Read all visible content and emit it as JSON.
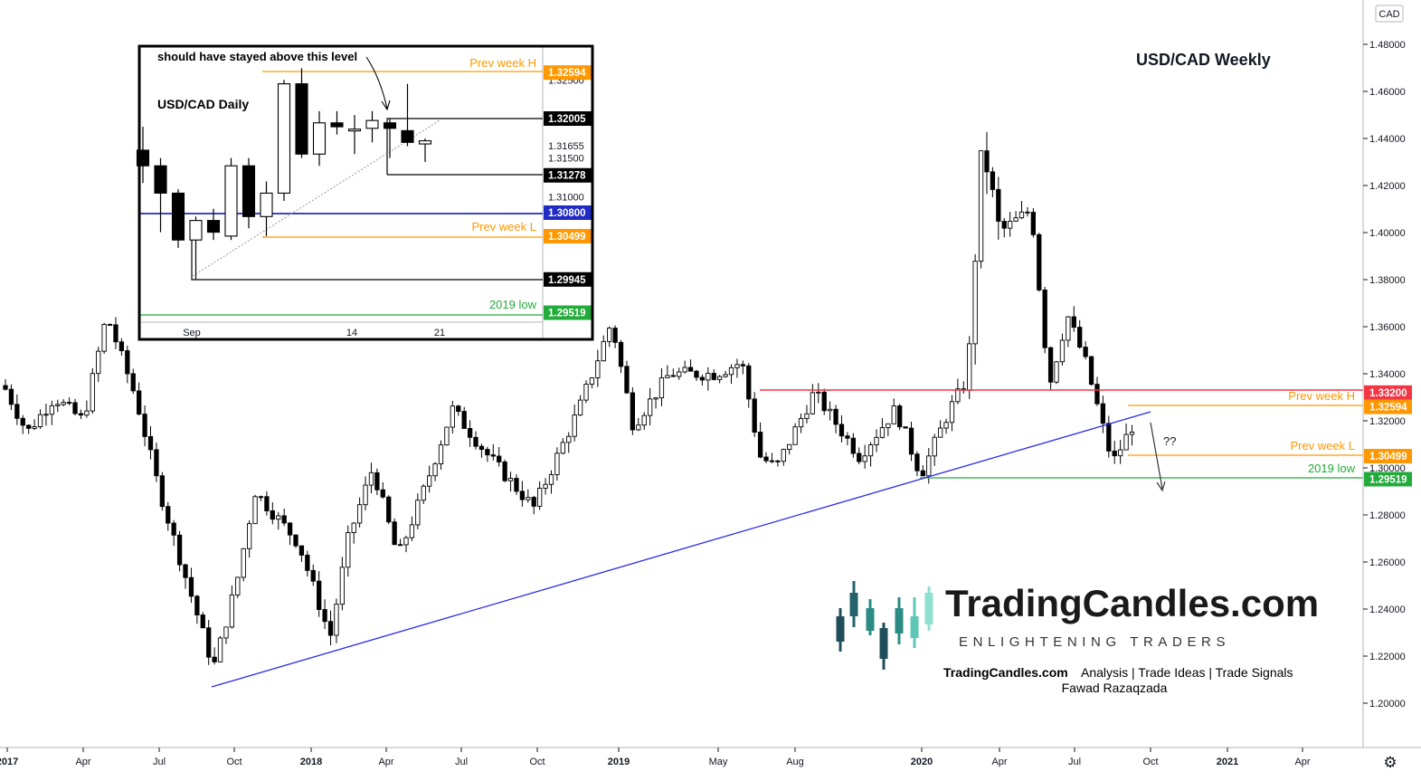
{
  "chart_data": [
    {
      "type": "candlestick",
      "title": "USD/CAD Weekly",
      "y_axis": {
        "unit_badge": "CAD",
        "ticks": [
          "1.48000",
          "1.46000",
          "1.44000",
          "1.42000",
          "1.40000",
          "1.38000",
          "1.36000",
          "1.34000",
          "1.32000",
          "1.30000",
          "1.28000",
          "1.26000",
          "1.24000",
          "1.22000",
          "1.20000"
        ],
        "ylim": [
          1.19,
          1.485
        ]
      },
      "x_axis": {
        "ticks": [
          "2017",
          "Apr",
          "Jul",
          "Oct",
          "2018",
          "Apr",
          "Jul",
          "Oct",
          "2019",
          "May",
          "Aug",
          "2020",
          "Apr",
          "Jul",
          "Oct",
          "2021",
          "Apr"
        ]
      },
      "price_tags": [
        {
          "value": "1.33200",
          "color": "#f23645",
          "price": 1.332
        },
        {
          "value": "1.32594",
          "color": "#ff9800",
          "price": 1.32594
        },
        {
          "value": "1.30499",
          "color": "#ff9800",
          "price": 1.30499
        },
        {
          "value": "1.29519",
          "color": "#22ab3a",
          "price": 1.29519
        }
      ],
      "annotations": {
        "prev_week_h": "Prev week H",
        "prev_week_l": "Prev week L",
        "low_2019": "2019 low",
        "question": "??"
      }
    },
    {
      "type": "candlestick",
      "title": "USD/CAD Daily",
      "annotation": "should have stayed above this level",
      "y_axis": {
        "ticks": [
          "1.32500",
          "1.31655",
          "1.31500",
          "1.31000"
        ]
      },
      "x_axis": {
        "ticks": [
          "Sep",
          "14",
          "21"
        ]
      },
      "price_tags": [
        {
          "value": "1.32594",
          "color": "#ff9800",
          "price": 1.32594
        },
        {
          "value": "1.32005",
          "color": "#000000",
          "price": 1.32005
        },
        {
          "value": "1.31278",
          "color": "#000000",
          "price": 1.31278
        },
        {
          "value": "1.30800",
          "color": "#1f2bc4",
          "price": 1.308
        },
        {
          "value": "1.30499",
          "color": "#ff9800",
          "price": 1.30499
        },
        {
          "value": "1.29945",
          "color": "#000000",
          "price": 1.29945
        },
        {
          "value": "1.29519",
          "color": "#22ab3a",
          "price": 1.29519
        }
      ],
      "labels": {
        "prev_week_h": "Prev week H",
        "prev_week_l": "Prev week L",
        "low_2019": "2019 low"
      },
      "candles": [
        {
          "o": 1.316,
          "h": 1.319,
          "l": 1.3118,
          "c": 1.314
        },
        {
          "o": 1.314,
          "h": 1.315,
          "l": 1.3055,
          "c": 1.3105
        },
        {
          "o": 1.3105,
          "h": 1.311,
          "l": 1.3035,
          "c": 1.3045
        },
        {
          "o": 1.3045,
          "h": 1.3075,
          "l": 1.2995,
          "c": 1.307
        },
        {
          "o": 1.307,
          "h": 1.3085,
          "l": 1.3045,
          "c": 1.3055
        },
        {
          "o": 1.305,
          "h": 1.315,
          "l": 1.3045,
          "c": 1.314
        },
        {
          "o": 1.314,
          "h": 1.315,
          "l": 1.306,
          "c": 1.3075
        },
        {
          "o": 1.3075,
          "h": 1.312,
          "l": 1.305,
          "c": 1.3105
        },
        {
          "o": 1.3105,
          "h": 1.325,
          "l": 1.3095,
          "c": 1.3245
        },
        {
          "o": 1.3245,
          "h": 1.3265,
          "l": 1.315,
          "c": 1.3155
        },
        {
          "o": 1.3155,
          "h": 1.321,
          "l": 1.314,
          "c": 1.3195
        },
        {
          "o": 1.3195,
          "h": 1.321,
          "l": 1.318,
          "c": 1.319
        },
        {
          "o": 1.3185,
          "h": 1.3205,
          "l": 1.3155,
          "c": 1.3187
        },
        {
          "o": 1.3188,
          "h": 1.321,
          "l": 1.317,
          "c": 1.3198
        },
        {
          "o": 1.3195,
          "h": 1.32,
          "l": 1.315,
          "c": 1.3188
        },
        {
          "o": 1.3185,
          "h": 1.3245,
          "l": 1.3165,
          "c": 1.317
        },
        {
          "o": 1.3168,
          "h": 1.3175,
          "l": 1.3145,
          "c": 1.3172
        }
      ]
    }
  ],
  "branding": {
    "name": "TradingCandles.com",
    "tagline": "ENLIGHTENING TRADERS",
    "footer_site": "TradingCandles.com",
    "footer_services": "Analysis | Trade Ideas | Trade Signals",
    "author": "Fawad Razaqzada"
  }
}
